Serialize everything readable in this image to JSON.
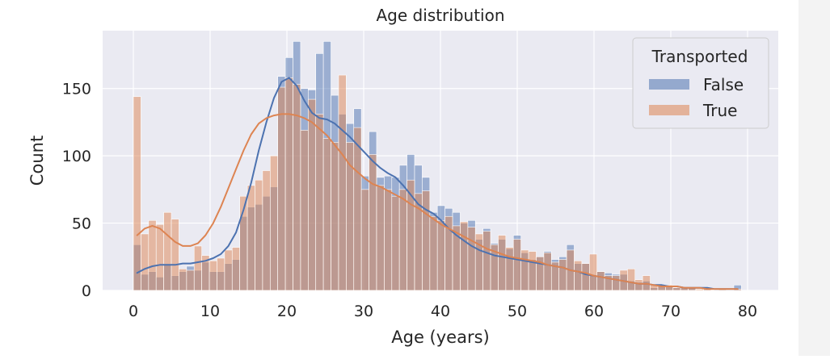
{
  "chart_data": {
    "type": "bar",
    "title": "Age distribution",
    "xlabel": "Age (years)",
    "ylabel": "Count",
    "xlim": [
      -4,
      84
    ],
    "ylim": [
      0,
      193
    ],
    "xticks": [
      "0",
      "10",
      "20",
      "30",
      "40",
      "50",
      "60",
      "70",
      "80"
    ],
    "yticks": [
      "0",
      "50",
      "100",
      "150"
    ],
    "grid": true,
    "legend": {
      "title": "Transported",
      "position": "top-right"
    },
    "bin_start": 0,
    "bin_width": 0.99,
    "series": [
      {
        "name": "False",
        "color": "#4c72b0",
        "values": [
          34,
          12,
          14,
          10,
          19,
          11,
          14,
          18,
          15,
          21,
          14,
          14,
          20,
          23,
          55,
          62,
          64,
          70,
          77,
          159,
          173,
          185,
          150,
          149,
          176,
          185,
          145,
          131,
          124,
          135,
          85,
          118,
          84,
          85,
          84,
          93,
          101,
          93,
          84,
          58,
          63,
          61,
          58,
          50,
          52,
          38,
          46,
          35,
          38,
          31,
          41,
          28,
          23,
          25,
          29,
          23,
          25,
          34,
          20,
          20,
          11,
          14,
          13,
          12,
          12,
          7,
          6,
          7,
          2,
          3,
          3,
          2,
          2,
          2,
          0,
          1,
          0,
          0,
          0,
          4
        ],
        "kde": [
          13,
          16,
          18,
          19,
          19,
          19,
          20,
          20,
          21,
          22,
          24,
          27,
          33,
          43,
          60,
          80,
          104,
          125,
          143,
          155,
          158,
          152,
          141,
          132,
          128,
          127,
          124,
          119,
          114,
          108,
          102,
          96,
          91,
          87,
          84,
          78,
          71,
          64,
          60,
          57,
          52,
          46,
          41,
          37,
          33,
          30,
          28,
          26,
          25,
          24,
          23,
          22,
          21,
          20,
          19,
          18,
          17,
          15,
          14,
          12,
          11,
          10,
          9,
          8,
          7,
          6,
          5,
          5,
          4,
          4,
          3,
          3,
          2,
          2,
          2,
          2,
          1,
          1,
          1,
          1
        ]
      },
      {
        "name": "True",
        "color": "#dd8452",
        "values": [
          144,
          42,
          52,
          49,
          58,
          53,
          16,
          15,
          33,
          26,
          22,
          24,
          30,
          32,
          70,
          78,
          82,
          89,
          100,
          151,
          158,
          153,
          119,
          142,
          131,
          113,
          110,
          160,
          110,
          121,
          75,
          101,
          78,
          75,
          70,
          75,
          82,
          72,
          74,
          55,
          52,
          55,
          48,
          51,
          47,
          42,
          44,
          34,
          41,
          32,
          38,
          30,
          29,
          25,
          28,
          21,
          23,
          30,
          22,
          20,
          27,
          14,
          11,
          11,
          15,
          16,
          8,
          11,
          4,
          4,
          4,
          2,
          2,
          2,
          1,
          1,
          0,
          1,
          0,
          1
        ],
        "kde": [
          41,
          46,
          48,
          46,
          41,
          36,
          33,
          33,
          35,
          41,
          50,
          62,
          76,
          90,
          104,
          116,
          124,
          128,
          130,
          131,
          131,
          130,
          128,
          125,
          120,
          115,
          108,
          101,
          93,
          88,
          83,
          79,
          77,
          74,
          71,
          68,
          64,
          61,
          57,
          53,
          49,
          46,
          43,
          40,
          37,
          34,
          31,
          29,
          27,
          25,
          24,
          23,
          22,
          21,
          19,
          18,
          17,
          15,
          14,
          13,
          11,
          10,
          9,
          8,
          7,
          6,
          5,
          5,
          4,
          3,
          3,
          3,
          2,
          2,
          2,
          1,
          1,
          1,
          1,
          1
        ]
      }
    ]
  }
}
